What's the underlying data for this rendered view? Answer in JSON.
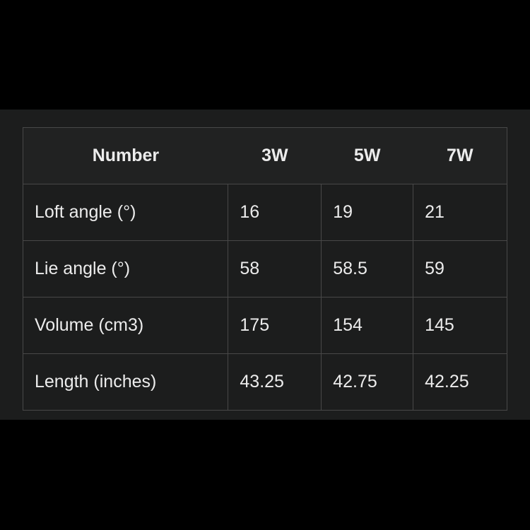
{
  "table": {
    "headers": [
      "Number",
      "3W",
      "5W",
      "7W"
    ],
    "rows": [
      [
        "Loft angle (°)",
        "16",
        "19",
        "21"
      ],
      [
        "Lie angle (°)",
        "58",
        "58.5",
        "59"
      ],
      [
        "Volume (cm3)",
        "175",
        "154",
        "145"
      ],
      [
        "Length (inches)",
        "43.25",
        "42.75",
        "42.25"
      ]
    ]
  }
}
